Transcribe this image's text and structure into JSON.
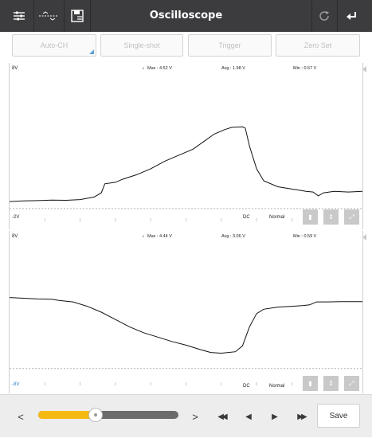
{
  "window": {
    "title": "Oscilloscope"
  },
  "icons": {
    "settings": "sliders-icon",
    "waveform": "waveform-icon",
    "save_file": "save-file-icon",
    "refresh": "refresh-icon",
    "back": "back-icon"
  },
  "toolbar": {
    "auto_ch": "Auto-CH",
    "single_shot": "Single-shot",
    "trigger": "Trigger",
    "zero_set": "Zero Set"
  },
  "channels": [
    {
      "v_top": "8V",
      "v_bottom": "-2V",
      "max": "Max : 4.52 V",
      "avg": "Avg : 1.98 V",
      "min": "Min : 0.57 V",
      "coupling": "DC",
      "mode": "Normal",
      "trace": [
        [
          0,
          0.868
        ],
        [
          0.04,
          0.864
        ],
        [
          0.08,
          0.862
        ],
        [
          0.12,
          0.858
        ],
        [
          0.16,
          0.86
        ],
        [
          0.2,
          0.855
        ],
        [
          0.24,
          0.838
        ],
        [
          0.26,
          0.81
        ],
        [
          0.27,
          0.75
        ],
        [
          0.3,
          0.74
        ],
        [
          0.32,
          0.72
        ],
        [
          0.36,
          0.69
        ],
        [
          0.4,
          0.65
        ],
        [
          0.44,
          0.6
        ],
        [
          0.48,
          0.56
        ],
        [
          0.52,
          0.52
        ],
        [
          0.55,
          0.47
        ],
        [
          0.58,
          0.42
        ],
        [
          0.61,
          0.39
        ],
        [
          0.63,
          0.375
        ],
        [
          0.66,
          0.372
        ],
        [
          0.668,
          0.38
        ],
        [
          0.68,
          0.5
        ],
        [
          0.7,
          0.65
        ],
        [
          0.72,
          0.73
        ],
        [
          0.76,
          0.77
        ],
        [
          0.8,
          0.785
        ],
        [
          0.84,
          0.8
        ],
        [
          0.86,
          0.805
        ],
        [
          0.875,
          0.83
        ],
        [
          0.89,
          0.81
        ],
        [
          0.92,
          0.8
        ],
        [
          0.96,
          0.805
        ],
        [
          1,
          0.8
        ]
      ],
      "dashed_level": 0.915
    },
    {
      "v_top": "8V",
      "v_bottom": "-8V",
      "max": "Max : 4.44 V",
      "avg": "Avg : 3.06 V",
      "min": "Min : 0.59 V",
      "coupling": "DC",
      "mode": "Normal",
      "trace": [
        [
          0,
          0.4
        ],
        [
          0.04,
          0.405
        ],
        [
          0.08,
          0.41
        ],
        [
          0.12,
          0.412
        ],
        [
          0.14,
          0.42
        ],
        [
          0.18,
          0.43
        ],
        [
          0.22,
          0.46
        ],
        [
          0.26,
          0.5
        ],
        [
          0.3,
          0.55
        ],
        [
          0.34,
          0.6
        ],
        [
          0.38,
          0.64
        ],
        [
          0.42,
          0.67
        ],
        [
          0.46,
          0.7
        ],
        [
          0.5,
          0.725
        ],
        [
          0.54,
          0.755
        ],
        [
          0.57,
          0.775
        ],
        [
          0.6,
          0.78
        ],
        [
          0.64,
          0.77
        ],
        [
          0.66,
          0.73
        ],
        [
          0.68,
          0.6
        ],
        [
          0.7,
          0.51
        ],
        [
          0.72,
          0.48
        ],
        [
          0.76,
          0.465
        ],
        [
          0.8,
          0.46
        ],
        [
          0.83,
          0.455
        ],
        [
          0.85,
          0.45
        ],
        [
          0.87,
          0.43
        ],
        [
          0.9,
          0.43
        ],
        [
          0.94,
          0.428
        ],
        [
          1,
          0.428
        ]
      ],
      "dashed_level": 0.885
    }
  ],
  "bottom": {
    "prev": "<",
    "next": ">",
    "fast_back": "◀◀",
    "step_back": "◀",
    "step_fwd": "▶",
    "fast_fwd": "▶▶",
    "save": "Save",
    "slider_fraction": 0.41
  }
}
